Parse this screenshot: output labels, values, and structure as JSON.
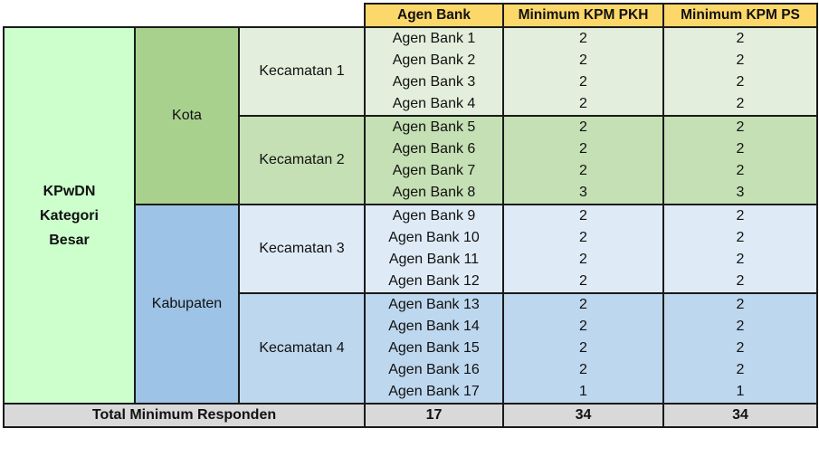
{
  "headers": {
    "agen_bank": "Agen Bank",
    "min_pkh": "Minimum KPM PKH",
    "min_ps": "Minimum KPM PS"
  },
  "region": {
    "line1": "KPwDN",
    "line2": "Kategori",
    "line3": "Besar"
  },
  "areas": {
    "kota": "Kota",
    "kabupaten": "Kabupaten"
  },
  "kecamatan": {
    "k1": "Kecamatan 1",
    "k2": "Kecamatan 2",
    "k3": "Kecamatan 3",
    "k4": "Kecamatan 4"
  },
  "rows": [
    {
      "agen": "Agen Bank 1",
      "pkh": "2",
      "ps": "2"
    },
    {
      "agen": "Agen Bank 2",
      "pkh": "2",
      "ps": "2"
    },
    {
      "agen": "Agen Bank 3",
      "pkh": "2",
      "ps": "2"
    },
    {
      "agen": "Agen Bank 4",
      "pkh": "2",
      "ps": "2"
    },
    {
      "agen": "Agen Bank 5",
      "pkh": "2",
      "ps": "2"
    },
    {
      "agen": "Agen Bank 6",
      "pkh": "2",
      "ps": "2"
    },
    {
      "agen": "Agen Bank 7",
      "pkh": "2",
      "ps": "2"
    },
    {
      "agen": "Agen Bank 8",
      "pkh": "3",
      "ps": "3"
    },
    {
      "agen": "Agen Bank 9",
      "pkh": "2",
      "ps": "2"
    },
    {
      "agen": "Agen Bank 10",
      "pkh": "2",
      "ps": "2"
    },
    {
      "agen": "Agen Bank 11",
      "pkh": "2",
      "ps": "2"
    },
    {
      "agen": "Agen Bank 12",
      "pkh": "2",
      "ps": "2"
    },
    {
      "agen": "Agen Bank 13",
      "pkh": "2",
      "ps": "2"
    },
    {
      "agen": "Agen Bank 14",
      "pkh": "2",
      "ps": "2"
    },
    {
      "agen": "Agen Bank 15",
      "pkh": "2",
      "ps": "2"
    },
    {
      "agen": "Agen Bank 16",
      "pkh": "2",
      "ps": "2"
    },
    {
      "agen": "Agen Bank 17",
      "pkh": "1",
      "ps": "1"
    }
  ],
  "total": {
    "label": "Total Minimum Responden",
    "agen": "17",
    "pkh": "34",
    "ps": "34"
  },
  "colors": {
    "header": "#fcd86a",
    "region": "#ccffcc",
    "kota": "#a9d18e",
    "kabupaten": "#9dc3e6",
    "kec1": "#e3efdc",
    "kec2": "#c5e0b4",
    "kec3": "#deebf7",
    "kec4": "#bdd7ee",
    "total": "#d9d9d9"
  }
}
